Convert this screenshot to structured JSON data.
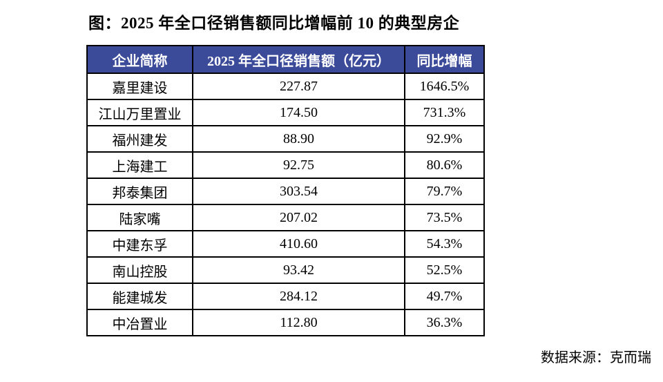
{
  "title": "图：2025 年全口径销售额同比增幅前 10 的典型房企",
  "table": {
    "columns": [
      "企业简称",
      "2025 年全口径销售额（亿元）",
      "同比增幅"
    ],
    "rows": [
      {
        "company": "嘉里建设",
        "sales": "227.87",
        "yoy": "1646.5%"
      },
      {
        "company": "江山万里置业",
        "sales": "174.50",
        "yoy": "731.3%"
      },
      {
        "company": "福州建发",
        "sales": "88.90",
        "yoy": "92.9%"
      },
      {
        "company": "上海建工",
        "sales": "92.75",
        "yoy": "80.6%"
      },
      {
        "company": "邦泰集团",
        "sales": "303.54",
        "yoy": "79.7%"
      },
      {
        "company": "陆家嘴",
        "sales": "207.02",
        "yoy": "73.5%"
      },
      {
        "company": "中建东孚",
        "sales": "410.60",
        "yoy": "54.3%"
      },
      {
        "company": "南山控股",
        "sales": "93.42",
        "yoy": "52.5%"
      },
      {
        "company": "能建城发",
        "sales": "284.12",
        "yoy": "49.7%"
      },
      {
        "company": "中冶置业",
        "sales": "112.80",
        "yoy": "36.3%"
      }
    ]
  },
  "footer": {
    "source_label": "数据来源：克而瑞"
  },
  "colors": {
    "header_bg": "#3B4A99",
    "header_text": "#FFFFFF",
    "border": "#000000",
    "background": "#FFFFFF",
    "text": "#000000"
  },
  "chart_data": {
    "type": "table",
    "title": "图：2025 年全口径销售额同比增幅前 10 的典型房企",
    "columns": [
      "企业简称",
      "2025 年全口径销售额（亿元）",
      "同比增幅"
    ],
    "rows": [
      [
        "嘉里建设",
        227.87,
        "1646.5%"
      ],
      [
        "江山万里置业",
        174.5,
        "731.3%"
      ],
      [
        "福州建发",
        88.9,
        "92.9%"
      ],
      [
        "上海建工",
        92.75,
        "80.6%"
      ],
      [
        "邦泰集团",
        303.54,
        "79.7%"
      ],
      [
        "陆家嘴",
        207.02,
        "73.5%"
      ],
      [
        "中建东孚",
        410.6,
        "54.3%"
      ],
      [
        "南山控股",
        93.42,
        "52.5%"
      ],
      [
        "能建城发",
        284.12,
        "49.7%"
      ],
      [
        "中冶置业",
        112.8,
        "36.3%"
      ]
    ],
    "source": "数据来源：克而瑞"
  }
}
